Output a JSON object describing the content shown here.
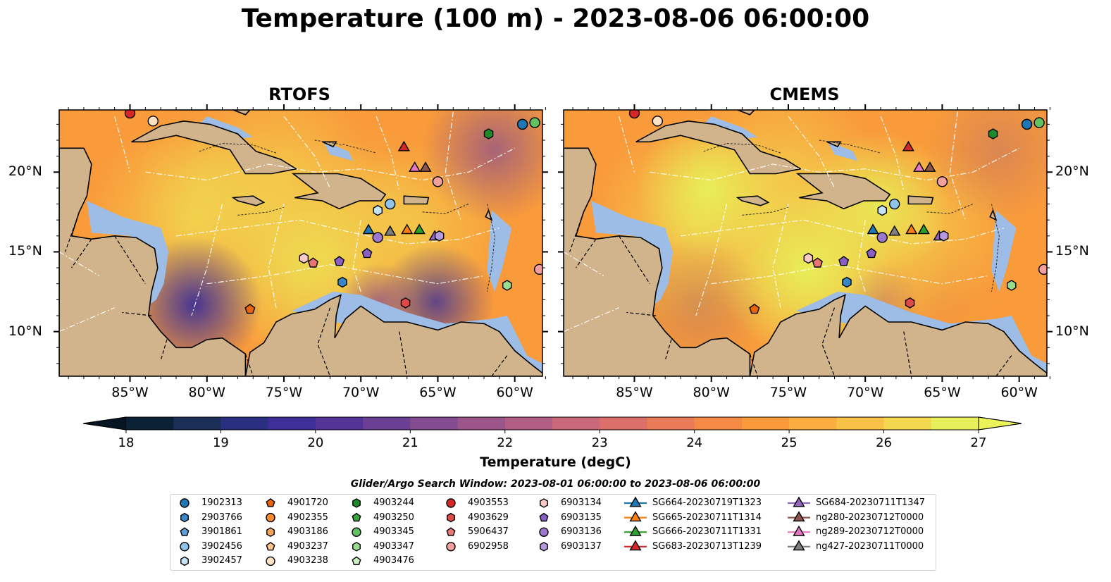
{
  "title": "Temperature (100 m) - 2023-08-06 06:00:00",
  "panels": [
    {
      "title": "RTOFS",
      "shade": 0.0
    },
    {
      "title": "CMEMS",
      "shade": 0.22
    }
  ],
  "lon_ticks": [
    "85°W",
    "80°W",
    "75°W",
    "70°W",
    "65°W",
    "60°W"
  ],
  "lat_ticks": [
    "20°N",
    "15°N",
    "10°N"
  ],
  "colorbar": {
    "label": "Temperature (degC)",
    "ticks": [
      "18",
      "19",
      "20",
      "21",
      "22",
      "23",
      "24",
      "25",
      "26",
      "27"
    ],
    "min": 18,
    "max": 27,
    "colors": [
      "#0b2136",
      "#1b2e57",
      "#2b2f82",
      "#3c2f97",
      "#533496",
      "#6b3f94",
      "#844b90",
      "#9b558a",
      "#b25e82",
      "#c86878",
      "#db706a",
      "#ea7b58",
      "#f48a46",
      "#f99b3b",
      "#fbae3f",
      "#f8c247",
      "#f2d74f",
      "#e7f058"
    ],
    "low_color": "#061523",
    "high_color": "#ecf25a"
  },
  "colors": {
    "land": "#d2b48c",
    "shallow": "#9dbde6"
  },
  "legend": {
    "title": "Glider/Argo Search Window: 2023-08-01 06:00:00 to 2023-08-06 06:00:00",
    "columns": [
      [
        {
          "label": "1902313",
          "marker": "circle",
          "color": "#1f77b4"
        },
        {
          "label": "2903766",
          "marker": "hexagon",
          "color": "#3a87c8"
        },
        {
          "label": "3901861",
          "marker": "pentagon",
          "color": "#5b9fd6"
        },
        {
          "label": "3902456",
          "marker": "circle",
          "color": "#8fc3ea"
        },
        {
          "label": "3902457",
          "marker": "hexagon",
          "color": "#c7e3f7"
        }
      ],
      [
        {
          "label": "4901720",
          "marker": "pentagon",
          "color": "#e8650a"
        },
        {
          "label": "4902355",
          "marker": "circle",
          "color": "#f68c2f"
        },
        {
          "label": "4903186",
          "marker": "hexagon",
          "color": "#f9a45d"
        },
        {
          "label": "4903237",
          "marker": "pentagon",
          "color": "#fbc48f"
        },
        {
          "label": "4903238",
          "marker": "circle",
          "color": "#fde2c4"
        }
      ],
      [
        {
          "label": "4903244",
          "marker": "hexagon",
          "color": "#1e8a2a"
        },
        {
          "label": "4903250",
          "marker": "pentagon",
          "color": "#3aa63c"
        },
        {
          "label": "4903345",
          "marker": "circle",
          "color": "#62c262"
        },
        {
          "label": "4903347",
          "marker": "hexagon",
          "color": "#99dc8e"
        },
        {
          "label": "4903476",
          "marker": "pentagon",
          "color": "#cdf0c4"
        }
      ],
      [
        {
          "label": "4903553",
          "marker": "circle",
          "color": "#d62728"
        },
        {
          "label": "4903629",
          "marker": "hexagon",
          "color": "#e0494a"
        },
        {
          "label": "5906437",
          "marker": "pentagon",
          "color": "#ea7575"
        },
        {
          "label": "6902958",
          "marker": "circle",
          "color": "#f4a09e"
        }
      ],
      [
        {
          "label": "6903134",
          "marker": "hexagon",
          "color": "#f9cbc8"
        },
        {
          "label": "6903135",
          "marker": "pentagon",
          "color": "#8a5fc4"
        },
        {
          "label": "6903136",
          "marker": "circle",
          "color": "#9d77cf"
        },
        {
          "label": "6903137",
          "marker": "hexagon",
          "color": "#b59ae0"
        }
      ],
      [
        {
          "label": "SG664-20230719T1323",
          "marker": "triangle-line",
          "color": "#1f77b4"
        },
        {
          "label": "SG665-20230711T1314",
          "marker": "triangle-line",
          "color": "#ff7f0e"
        },
        {
          "label": "SG666-20230711T1331",
          "marker": "triangle-line",
          "color": "#2ca02c"
        },
        {
          "label": "SG683-20230713T1239",
          "marker": "triangle-line",
          "color": "#d62728"
        }
      ],
      [
        {
          "label": "SG684-20230711T1347",
          "marker": "triangle-line",
          "color": "#9467bd"
        },
        {
          "label": "ng280-20230712T0000",
          "marker": "triangle-line",
          "color": "#8c564b"
        },
        {
          "label": "ng289-20230712T0000",
          "marker": "triangle-line",
          "color": "#e377c2"
        },
        {
          "label": "ng427-20230711T0000",
          "marker": "triangle-line",
          "color": "#7f7f7f"
        }
      ]
    ]
  },
  "markers": [
    {
      "id": "1902313",
      "lon": -59.5,
      "lat": 23.0,
      "marker": "circle",
      "color": "#1f77b4"
    },
    {
      "id": "4903345",
      "lon": -58.7,
      "lat": 23.1,
      "marker": "circle",
      "color": "#62c262"
    },
    {
      "id": "4903244",
      "lon": -61.7,
      "lat": 22.4,
      "marker": "hexagon",
      "color": "#1e8a2a"
    },
    {
      "id": "4903238",
      "lon": -83.5,
      "lat": 23.2,
      "marker": "circle",
      "color": "#fde2c4"
    },
    {
      "id": "4903553",
      "lon": -85.0,
      "lat": 23.7,
      "marker": "circle",
      "color": "#d62728"
    },
    {
      "id": "SG683-20230713T1239",
      "lon": -67.2,
      "lat": 21.6,
      "marker": "triangle",
      "color": "#d62728"
    },
    {
      "id": "ng289-20230712T0000",
      "lon": -66.5,
      "lat": 20.3,
      "marker": "triangle",
      "color": "#e377c2"
    },
    {
      "id": "ng280-20230712T0000",
      "lon": -65.8,
      "lat": 20.3,
      "marker": "triangle",
      "color": "#8c564b"
    },
    {
      "id": "6902958",
      "lon": -65.0,
      "lat": 19.4,
      "marker": "circle",
      "color": "#f4a09e"
    },
    {
      "id": "3902456",
      "lon": -68.1,
      "lat": 18.0,
      "marker": "circle",
      "color": "#8fc3ea"
    },
    {
      "id": "3902457",
      "lon": -68.9,
      "lat": 17.6,
      "marker": "hexagon",
      "color": "#c7e3f7"
    },
    {
      "id": "SG664-20230719T1323",
      "lon": -69.5,
      "lat": 16.4,
      "marker": "triangle",
      "color": "#1f77b4"
    },
    {
      "id": "6903136",
      "lon": -68.9,
      "lat": 15.9,
      "marker": "circle",
      "color": "#9d77cf"
    },
    {
      "id": "ng427-20230711T0000",
      "lon": -68.1,
      "lat": 16.3,
      "marker": "triangle",
      "color": "#7f7f7f"
    },
    {
      "id": "SG665-20230711T1314",
      "lon": -67.0,
      "lat": 16.4,
      "marker": "triangle",
      "color": "#ff7f0e"
    },
    {
      "id": "SG666-20230711T1331",
      "lon": -66.2,
      "lat": 16.4,
      "marker": "triangle",
      "color": "#2ca02c"
    },
    {
      "id": "SG684-20230711T1347",
      "lon": -65.2,
      "lat": 16.0,
      "marker": "triangle",
      "color": "#9467bd"
    },
    {
      "id": "6903137",
      "lon": -64.9,
      "lat": 16.0,
      "marker": "hexagon",
      "color": "#b59ae0"
    },
    {
      "id": "6903135",
      "lon": -69.6,
      "lat": 14.9,
      "marker": "pentagon",
      "color": "#8a5fc4"
    },
    {
      "id": "6903134",
      "lon": -73.7,
      "lat": 14.6,
      "marker": "hexagon",
      "color": "#f9cbc8"
    },
    {
      "id": "5906437",
      "lon": -73.1,
      "lat": 14.3,
      "marker": "pentagon",
      "color": "#ea7575"
    },
    {
      "id": "6903135b",
      "lon": -71.4,
      "lat": 14.4,
      "marker": "pentagon",
      "color": "#8a5fc4"
    },
    {
      "id": "2903766",
      "lon": -71.2,
      "lat": 13.1,
      "marker": "hexagon",
      "color": "#3a87c8"
    },
    {
      "id": "4903347",
      "lon": -60.5,
      "lat": 12.9,
      "marker": "hexagon",
      "color": "#99dc8e"
    },
    {
      "id": "6902958b",
      "lon": -58.4,
      "lat": 13.9,
      "marker": "circle",
      "color": "#f4a09e"
    },
    {
      "id": "4901720",
      "lon": -77.2,
      "lat": 11.4,
      "marker": "pentagon",
      "color": "#e8650a"
    },
    {
      "id": "4903629",
      "lon": -67.1,
      "lat": 11.8,
      "marker": "hexagon",
      "color": "#e0494a"
    }
  ]
}
